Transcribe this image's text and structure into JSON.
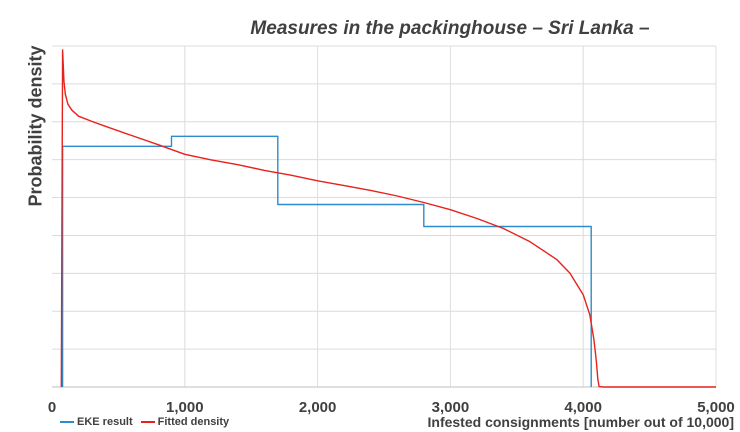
{
  "chart_data": {
    "type": "line",
    "title": "Measures in the packinghouse – Sri Lanka –",
    "xlabel": "Infested consignments [number out of 10,000]",
    "ylabel": "Probability density",
    "xlim": [
      0,
      5000
    ],
    "x_ticks": [
      "0",
      "1,000",
      "2,000",
      "3,000",
      "4,000",
      "5,000"
    ],
    "y_tick_labels_shown": false,
    "grid": "horizontal and vertical",
    "legend_position": "bottom-left",
    "series": [
      {
        "name": "EKE result",
        "color": "#2e8bcc",
        "style": "step",
        "x": [
          80,
          80,
          900,
          900,
          1700,
          1700,
          2800,
          2800,
          4060,
          4060
        ],
        "y": [
          0,
          0.6,
          0.6,
          0.625,
          0.625,
          0.455,
          0.455,
          0.4,
          0.4,
          0
        ]
      },
      {
        "name": "Fitted density",
        "color": "#e8211c",
        "style": "line",
        "x": [
          70,
          80,
          85,
          90,
          100,
          120,
          150,
          200,
          300,
          400,
          600,
          800,
          1000,
          1200,
          1400,
          1600,
          1800,
          2000,
          2200,
          2400,
          2600,
          2800,
          3000,
          3200,
          3400,
          3600,
          3800,
          3900,
          4000,
          4050,
          4080,
          4090,
          4100,
          4110,
          4120,
          4150,
          4300,
          5000
        ],
        "y": [
          0,
          0.84,
          0.8,
          0.76,
          0.73,
          0.705,
          0.69,
          0.675,
          0.662,
          0.65,
          0.627,
          0.604,
          0.58,
          0.566,
          0.554,
          0.54,
          0.528,
          0.514,
          0.502,
          0.49,
          0.476,
          0.46,
          0.442,
          0.42,
          0.395,
          0.362,
          0.318,
          0.284,
          0.23,
          0.18,
          0.12,
          0.09,
          0.06,
          0.02,
          0.001,
          0,
          0,
          0
        ]
      }
    ],
    "ylim": [
      0,
      0.85
    ]
  }
}
